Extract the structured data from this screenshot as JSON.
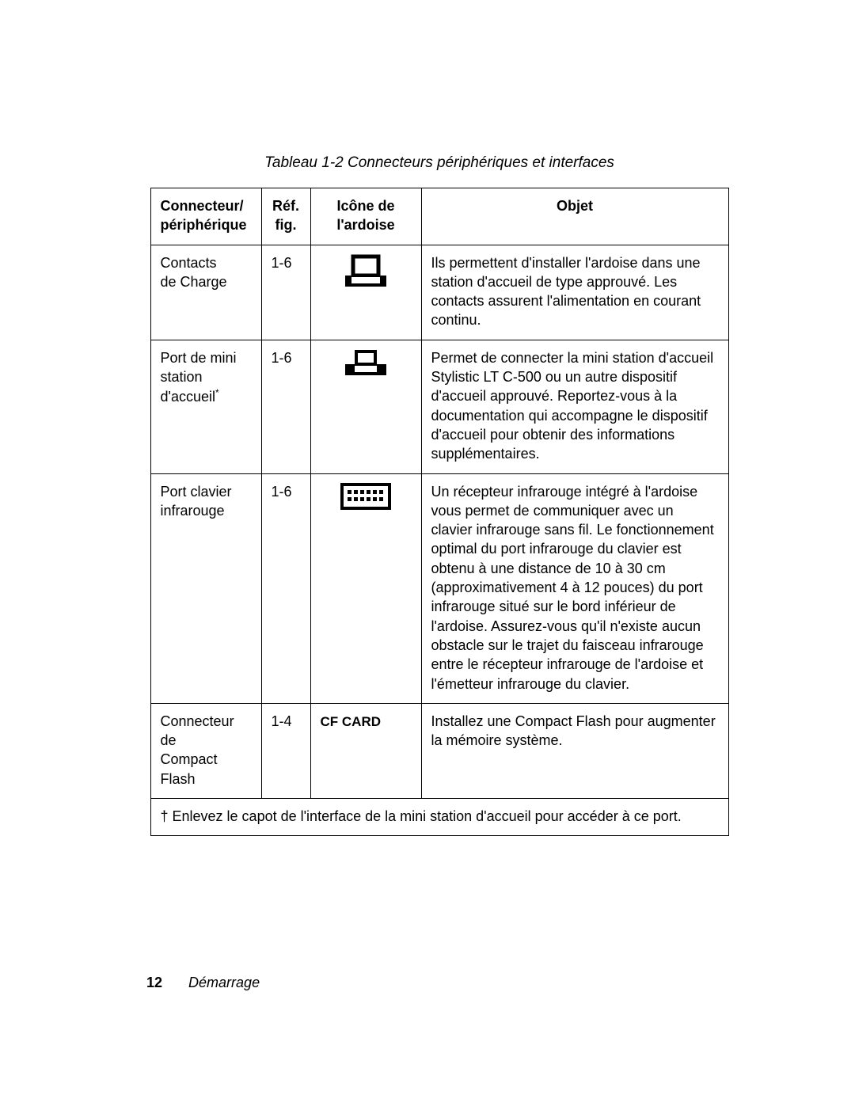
{
  "caption": "Tableau 1-2   Connecteurs périphériques et interfaces",
  "headers": {
    "col1_line1": "Connecteur/",
    "col1_line2": "périphérique",
    "col2_line1": "Réf.",
    "col2_line2": "fig.",
    "col3_line1": "Icône de",
    "col3_line2": "l'ardoise",
    "col4": "Objet"
  },
  "rows": [
    {
      "connector_l1": "Contacts",
      "connector_l2": "de Charge",
      "connector_l3": "",
      "ref": "1-6",
      "icon": "dock-large",
      "icon_text": "",
      "desc": "Ils permettent d'installer l'ardoise dans une station d'accueil de type approuvé. Les contacts assurent l'alimentation en courant continu."
    },
    {
      "connector_l1": "Port de mini",
      "connector_l2": "station",
      "connector_l3": "d'accueil",
      "dagger": "*",
      "ref": "1-6",
      "icon": "dock-small",
      "icon_text": "",
      "desc": "Permet de connecter la mini station d'accueil Stylistic LT C-500 ou un autre dispositif d'accueil approuvé. Reportez-vous à la documentation qui accompagne le dispositif d'accueil pour obtenir des informations supplémentaires."
    },
    {
      "connector_l1": "Port clavier",
      "connector_l2": "infrarouge",
      "connector_l3": "",
      "ref": "1-6",
      "icon": "keyboard",
      "icon_text": "",
      "desc": "Un récepteur infrarouge intégré à l'ardoise vous permet de communiquer avec un clavier infrarouge sans fil. Le fonctionnement optimal du port infrarouge du clavier est obtenu à une distance de 10 à 30 cm (approximativement 4 à 12 pouces) du port infrarouge situé sur le bord inférieur de l'ardoise. Assurez-vous qu'il n'existe aucun obstacle sur le trajet du faisceau infrarouge entre le récepteur infrarouge de l'ardoise et l'émetteur infrarouge du clavier."
    },
    {
      "connector_l1": "Connecteur de",
      "connector_l2": "Compact",
      "connector_l3": "Flash",
      "ref": "1-4",
      "icon": "text",
      "icon_text": "CF CARD",
      "desc": "Installez une Compact Flash pour augmenter la mémoire système."
    }
  ],
  "footnote": "† Enlevez le capot de l'interface de la mini station d'accueil pour accéder à ce port.",
  "footer": {
    "page": "12",
    "section": "Démarrage"
  },
  "colors": {
    "text": "#000000",
    "background": "#ffffff",
    "border": "#000000"
  }
}
